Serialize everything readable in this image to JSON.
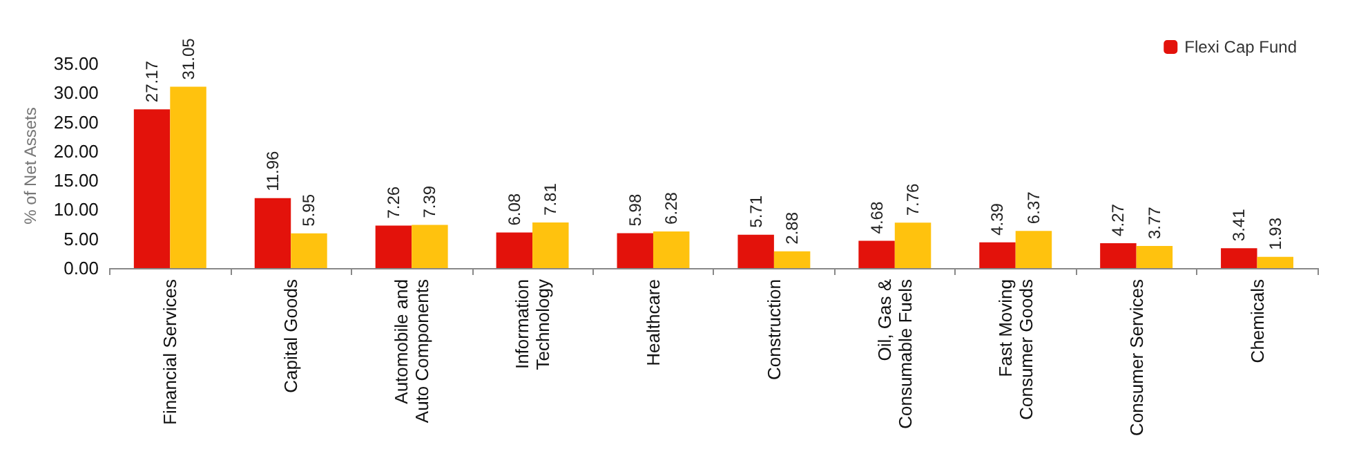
{
  "chart_data": {
    "type": "bar",
    "ylabel": "% of Net Assets",
    "categories": [
      "Financial Services",
      "Capital Goods",
      "Automobile and\nAuto Components",
      "Information\nTechnology",
      "Healthcare",
      "Construction",
      "Oil, Gas &\nConsumable Fuels",
      "Fast Moving\nConsumer Goods",
      "Consumer Services",
      "Chemicals"
    ],
    "series": [
      {
        "name": "Flexi Cap Fund",
        "color": "#e3120b",
        "values": [
          27.17,
          11.96,
          7.26,
          6.08,
          5.98,
          5.71,
          4.68,
          4.39,
          4.27,
          3.41
        ]
      },
      {
        "color": "#ffc20e",
        "values": [
          31.05,
          5.95,
          7.39,
          7.81,
          6.28,
          2.88,
          7.76,
          6.37,
          3.77,
          1.93
        ]
      }
    ],
    "ylim": [
      0,
      35
    ],
    "yticks": [
      {
        "value": 0,
        "label": "0.00"
      },
      {
        "value": 5,
        "label": "5.00"
      },
      {
        "value": 10,
        "label": "10.00"
      },
      {
        "value": 15,
        "label": "15.00"
      },
      {
        "value": 20,
        "label": "20.00"
      },
      {
        "value": 25,
        "label": "25.00"
      },
      {
        "value": 30,
        "label": "30.00"
      },
      {
        "value": 35,
        "label": "35.00"
      }
    ],
    "data_labels": true,
    "grid": false,
    "legend": "top right"
  }
}
